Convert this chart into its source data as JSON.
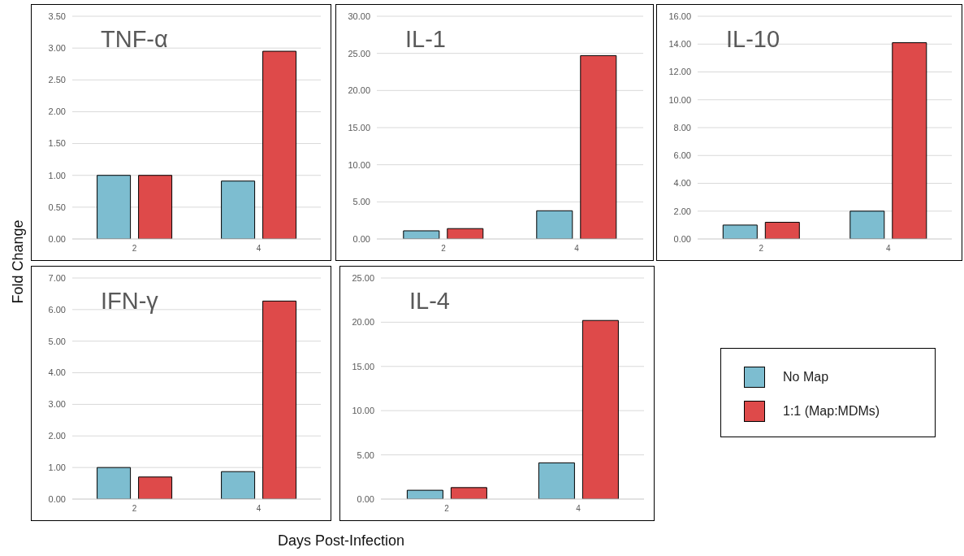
{
  "chart_data": [
    {
      "type": "bar",
      "title": "TNF-α",
      "ylabel": "Fold Change",
      "categories": [
        "2",
        "4"
      ],
      "grid": "y",
      "series": [
        {
          "color": "#7dbdd0",
          "values": [
            1.0,
            0.91
          ]
        },
        {
          "color": "#de4a4a",
          "values": [
            1.0,
            2.95
          ]
        }
      ],
      "ylim": [
        0,
        3.5
      ],
      "yticks": [
        {
          "value": 0,
          "label": "0.00"
        },
        {
          "value": 0.5,
          "label": "0.50"
        },
        {
          "value": 1,
          "label": "1.00"
        },
        {
          "value": 1.5,
          "label": "1.50"
        },
        {
          "value": 2,
          "label": "2.00"
        },
        {
          "value": 2.5,
          "label": "2.50"
        },
        {
          "value": 3,
          "label": "3.00"
        },
        {
          "value": 3.5,
          "label": "3.50"
        }
      ]
    },
    {
      "type": "bar",
      "title": "IL-1",
      "categories": [
        "2",
        "4"
      ],
      "grid": "y",
      "series": [
        {
          "color": "#7dbdd0",
          "values": [
            1.1,
            3.8
          ]
        },
        {
          "color": "#de4a4a",
          "values": [
            1.4,
            24.7
          ]
        }
      ],
      "ylim": [
        0,
        30
      ],
      "yticks": [
        {
          "value": 0,
          "label": "0.00"
        },
        {
          "value": 5,
          "label": "5.00"
        },
        {
          "value": 10,
          "label": "10.00"
        },
        {
          "value": 15,
          "label": "15.00"
        },
        {
          "value": 20,
          "label": "20.00"
        },
        {
          "value": 25,
          "label": "25.00"
        },
        {
          "value": 30,
          "label": "30.00"
        }
      ]
    },
    {
      "type": "bar",
      "title": "IL-10",
      "categories": [
        "2",
        "4"
      ],
      "grid": "y",
      "series": [
        {
          "color": "#7dbdd0",
          "values": [
            1.0,
            2.0
          ]
        },
        {
          "color": "#de4a4a",
          "values": [
            1.2,
            14.1
          ]
        }
      ],
      "ylim": [
        0,
        16
      ],
      "yticks": [
        {
          "value": 0,
          "label": "0.00"
        },
        {
          "value": 2,
          "label": "2.00"
        },
        {
          "value": 4,
          "label": "4.00"
        },
        {
          "value": 6,
          "label": "6.00"
        },
        {
          "value": 8,
          "label": "8.00"
        },
        {
          "value": 10,
          "label": "10.00"
        },
        {
          "value": 12,
          "label": "12.00"
        },
        {
          "value": 14,
          "label": "14.00"
        },
        {
          "value": 16,
          "label": "16.00"
        }
      ]
    },
    {
      "type": "bar",
      "title": "IFN-γ",
      "categories": [
        "2",
        "4"
      ],
      "grid": "y",
      "series": [
        {
          "color": "#7dbdd0",
          "values": [
            1.0,
            0.87
          ]
        },
        {
          "color": "#de4a4a",
          "values": [
            0.7,
            6.27
          ]
        }
      ],
      "ylim": [
        0,
        7
      ],
      "yticks": [
        {
          "value": 0,
          "label": "0.00"
        },
        {
          "value": 1,
          "label": "1.00"
        },
        {
          "value": 2,
          "label": "2.00"
        },
        {
          "value": 3,
          "label": "3.00"
        },
        {
          "value": 4,
          "label": "4.00"
        },
        {
          "value": 5,
          "label": "5.00"
        },
        {
          "value": 6,
          "label": "6.00"
        },
        {
          "value": 7,
          "label": "7.00"
        }
      ]
    },
    {
      "type": "bar",
      "title": "IL-4",
      "xlabel": "Days Post-Infection",
      "categories": [
        "2",
        "4"
      ],
      "grid": "y",
      "legend": "right",
      "series": [
        {
          "name": "No Map",
          "color": "#7dbdd0",
          "values": [
            1.0,
            4.1
          ]
        },
        {
          "name": "1:1 (Map:MDMs)",
          "color": "#de4a4a",
          "values": [
            1.3,
            20.2
          ]
        }
      ],
      "ylim": [
        0,
        25
      ],
      "yticks": [
        {
          "value": 0,
          "label": "0.00"
        },
        {
          "value": 5,
          "label": "5.00"
        },
        {
          "value": 10,
          "label": "10.00"
        },
        {
          "value": 15,
          "label": "15.00"
        },
        {
          "value": 20,
          "label": "20.00"
        },
        {
          "value": 25,
          "label": "25.00"
        }
      ]
    }
  ]
}
